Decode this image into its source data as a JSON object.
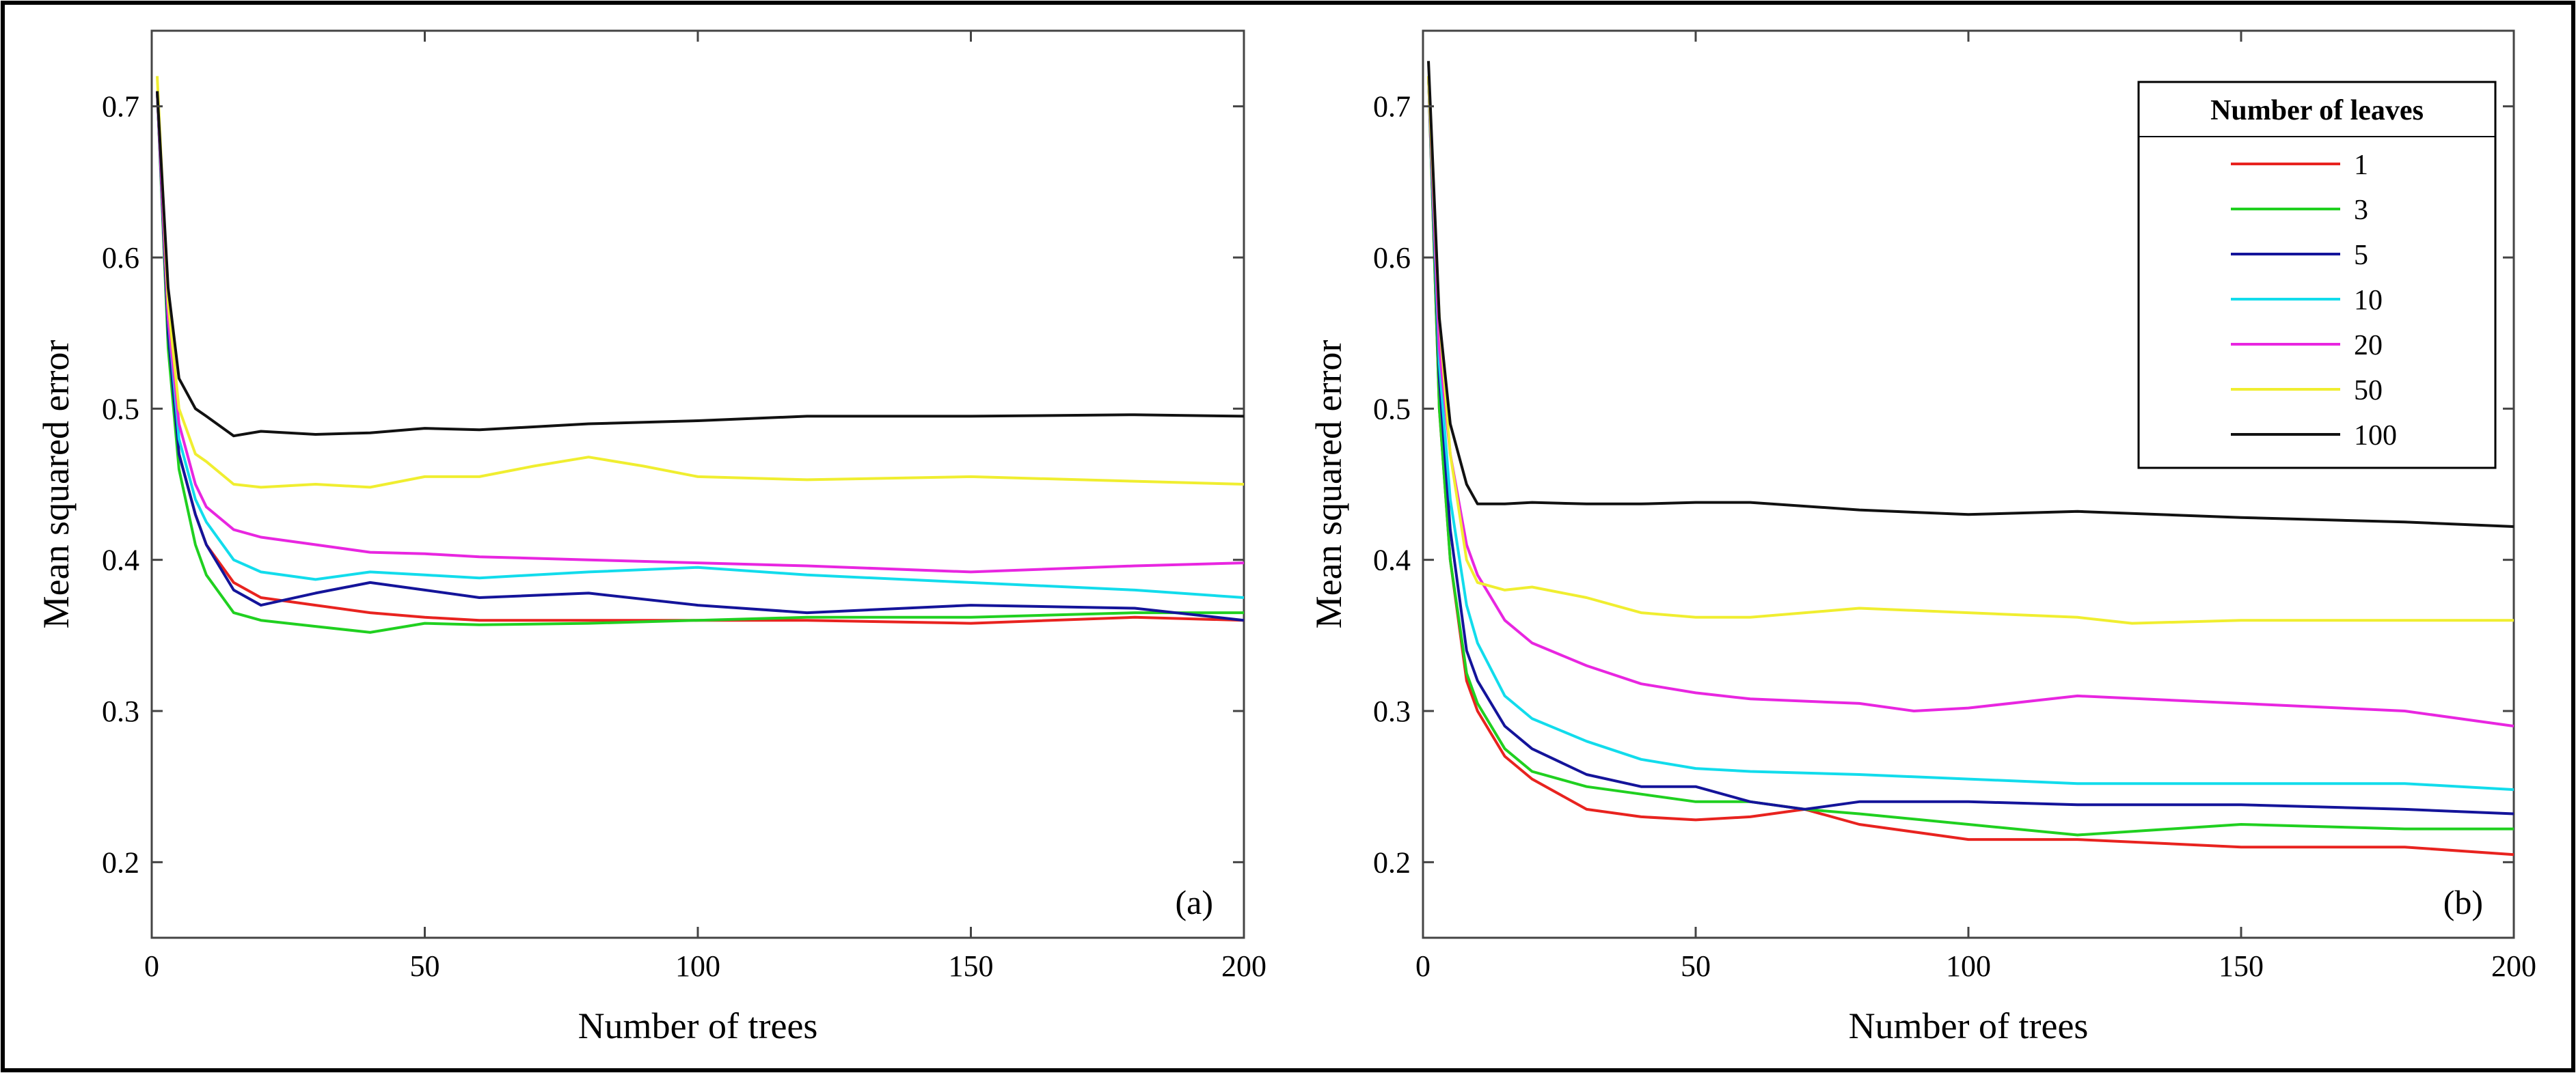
{
  "chart_data": [
    {
      "type": "line",
      "panel_label": "(a)",
      "xlabel": "Number of trees",
      "ylabel": "Mean squared error",
      "xlim": [
        0,
        200
      ],
      "ylim": [
        0.15,
        0.75
      ],
      "xticks": [
        0,
        50,
        100,
        150,
        200
      ],
      "yticks": [
        0.2,
        0.3,
        0.4,
        0.5,
        0.6,
        0.7
      ],
      "grid": false,
      "series": [
        {
          "name": "1",
          "color": "#e8231f",
          "x": [
            1,
            3,
            5,
            8,
            10,
            15,
            20,
            30,
            40,
            50,
            60,
            80,
            100,
            120,
            150,
            180,
            200
          ],
          "values": [
            0.71,
            0.55,
            0.47,
            0.43,
            0.41,
            0.385,
            0.375,
            0.37,
            0.365,
            0.362,
            0.36,
            0.36,
            0.36,
            0.36,
            0.358,
            0.362,
            0.36
          ]
        },
        {
          "name": "3",
          "color": "#20d020",
          "x": [
            1,
            3,
            5,
            8,
            10,
            15,
            20,
            30,
            40,
            50,
            60,
            80,
            100,
            120,
            150,
            180,
            200
          ],
          "values": [
            0.71,
            0.54,
            0.46,
            0.41,
            0.39,
            0.365,
            0.36,
            0.356,
            0.352,
            0.358,
            0.357,
            0.358,
            0.36,
            0.362,
            0.362,
            0.365,
            0.365
          ]
        },
        {
          "name": "5",
          "color": "#14149a",
          "x": [
            1,
            3,
            5,
            8,
            10,
            15,
            20,
            30,
            40,
            50,
            60,
            80,
            100,
            120,
            150,
            180,
            200
          ],
          "values": [
            0.71,
            0.55,
            0.47,
            0.43,
            0.41,
            0.38,
            0.37,
            0.378,
            0.385,
            0.38,
            0.375,
            0.378,
            0.37,
            0.365,
            0.37,
            0.368,
            0.36
          ]
        },
        {
          "name": "10",
          "color": "#12dcec",
          "x": [
            1,
            3,
            5,
            8,
            10,
            15,
            20,
            30,
            40,
            50,
            60,
            80,
            100,
            120,
            150,
            180,
            200
          ],
          "values": [
            0.71,
            0.56,
            0.48,
            0.44,
            0.425,
            0.4,
            0.392,
            0.387,
            0.392,
            0.39,
            0.388,
            0.392,
            0.395,
            0.39,
            0.385,
            0.38,
            0.375
          ]
        },
        {
          "name": "20",
          "color": "#e826e0",
          "x": [
            1,
            3,
            5,
            8,
            10,
            15,
            20,
            30,
            40,
            50,
            60,
            80,
            100,
            120,
            150,
            180,
            200
          ],
          "values": [
            0.71,
            0.56,
            0.49,
            0.45,
            0.435,
            0.42,
            0.415,
            0.41,
            0.405,
            0.404,
            0.402,
            0.4,
            0.398,
            0.396,
            0.392,
            0.396,
            0.398
          ]
        },
        {
          "name": "50",
          "color": "#f0ee30",
          "x": [
            1,
            3,
            5,
            8,
            10,
            15,
            20,
            30,
            40,
            50,
            60,
            70,
            80,
            90,
            100,
            120,
            150,
            180,
            200
          ],
          "values": [
            0.72,
            0.57,
            0.5,
            0.47,
            0.465,
            0.45,
            0.448,
            0.45,
            0.448,
            0.455,
            0.455,
            0.462,
            0.468,
            0.462,
            0.455,
            0.453,
            0.455,
            0.452,
            0.45
          ]
        },
        {
          "name": "100",
          "color": "#111111",
          "x": [
            1,
            3,
            5,
            8,
            10,
            15,
            20,
            30,
            40,
            50,
            60,
            80,
            100,
            120,
            150,
            180,
            200
          ],
          "values": [
            0.71,
            0.58,
            0.52,
            0.5,
            0.495,
            0.482,
            0.485,
            0.483,
            0.484,
            0.487,
            0.486,
            0.49,
            0.492,
            0.495,
            0.495,
            0.496,
            0.495
          ]
        }
      ]
    },
    {
      "type": "line",
      "panel_label": "(b)",
      "xlabel": "Number of trees",
      "ylabel": "Mean squared error",
      "xlim": [
        0,
        200
      ],
      "ylim": [
        0.15,
        0.75
      ],
      "xticks": [
        0,
        50,
        100,
        150,
        200
      ],
      "yticks": [
        0.2,
        0.3,
        0.4,
        0.5,
        0.6,
        0.7
      ],
      "grid": false,
      "legend": {
        "title": "Number of leaves",
        "location": "top-right"
      },
      "series": [
        {
          "name": "1",
          "color": "#e8231f",
          "x": [
            1,
            3,
            5,
            8,
            10,
            15,
            20,
            30,
            40,
            50,
            60,
            70,
            80,
            100,
            120,
            150,
            180,
            200
          ],
          "values": [
            0.72,
            0.5,
            0.4,
            0.32,
            0.3,
            0.27,
            0.255,
            0.235,
            0.23,
            0.228,
            0.23,
            0.235,
            0.225,
            0.215,
            0.215,
            0.21,
            0.21,
            0.205
          ]
        },
        {
          "name": "3",
          "color": "#20d020",
          "x": [
            1,
            3,
            5,
            8,
            10,
            15,
            20,
            30,
            40,
            50,
            60,
            70,
            80,
            100,
            120,
            150,
            180,
            200
          ],
          "values": [
            0.72,
            0.5,
            0.4,
            0.325,
            0.305,
            0.275,
            0.26,
            0.25,
            0.245,
            0.24,
            0.24,
            0.235,
            0.232,
            0.225,
            0.218,
            0.225,
            0.222,
            0.222
          ]
        },
        {
          "name": "5",
          "color": "#14149a",
          "x": [
            1,
            3,
            5,
            8,
            10,
            15,
            20,
            30,
            40,
            50,
            60,
            70,
            80,
            100,
            120,
            150,
            180,
            200
          ],
          "values": [
            0.72,
            0.52,
            0.42,
            0.34,
            0.32,
            0.29,
            0.275,
            0.258,
            0.25,
            0.25,
            0.24,
            0.235,
            0.24,
            0.24,
            0.238,
            0.238,
            0.235,
            0.232
          ]
        },
        {
          "name": "10",
          "color": "#12dcec",
          "x": [
            1,
            3,
            5,
            8,
            10,
            15,
            20,
            30,
            40,
            50,
            60,
            80,
            100,
            120,
            150,
            180,
            200
          ],
          "values": [
            0.72,
            0.53,
            0.44,
            0.37,
            0.345,
            0.31,
            0.295,
            0.28,
            0.268,
            0.262,
            0.26,
            0.258,
            0.255,
            0.252,
            0.252,
            0.252,
            0.248
          ]
        },
        {
          "name": "20",
          "color": "#e826e0",
          "x": [
            1,
            3,
            5,
            8,
            10,
            15,
            20,
            30,
            40,
            50,
            60,
            80,
            90,
            100,
            120,
            150,
            180,
            200
          ],
          "values": [
            0.72,
            0.54,
            0.47,
            0.41,
            0.39,
            0.36,
            0.345,
            0.33,
            0.318,
            0.312,
            0.308,
            0.305,
            0.3,
            0.302,
            0.31,
            0.305,
            0.3,
            0.29
          ]
        },
        {
          "name": "50",
          "color": "#f0ee30",
          "x": [
            1,
            3,
            5,
            8,
            10,
            15,
            20,
            30,
            40,
            50,
            60,
            80,
            100,
            120,
            130,
            150,
            180,
            200
          ],
          "values": [
            0.72,
            0.56,
            0.47,
            0.4,
            0.385,
            0.38,
            0.382,
            0.375,
            0.365,
            0.362,
            0.362,
            0.368,
            0.365,
            0.362,
            0.358,
            0.36,
            0.36,
            0.36
          ]
        },
        {
          "name": "100",
          "color": "#111111",
          "x": [
            1,
            3,
            5,
            8,
            10,
            15,
            20,
            30,
            40,
            50,
            60,
            80,
            100,
            120,
            150,
            180,
            200
          ],
          "values": [
            0.73,
            0.56,
            0.49,
            0.45,
            0.437,
            0.437,
            0.438,
            0.437,
            0.437,
            0.438,
            0.438,
            0.433,
            0.43,
            0.432,
            0.428,
            0.425,
            0.422
          ]
        }
      ]
    }
  ]
}
